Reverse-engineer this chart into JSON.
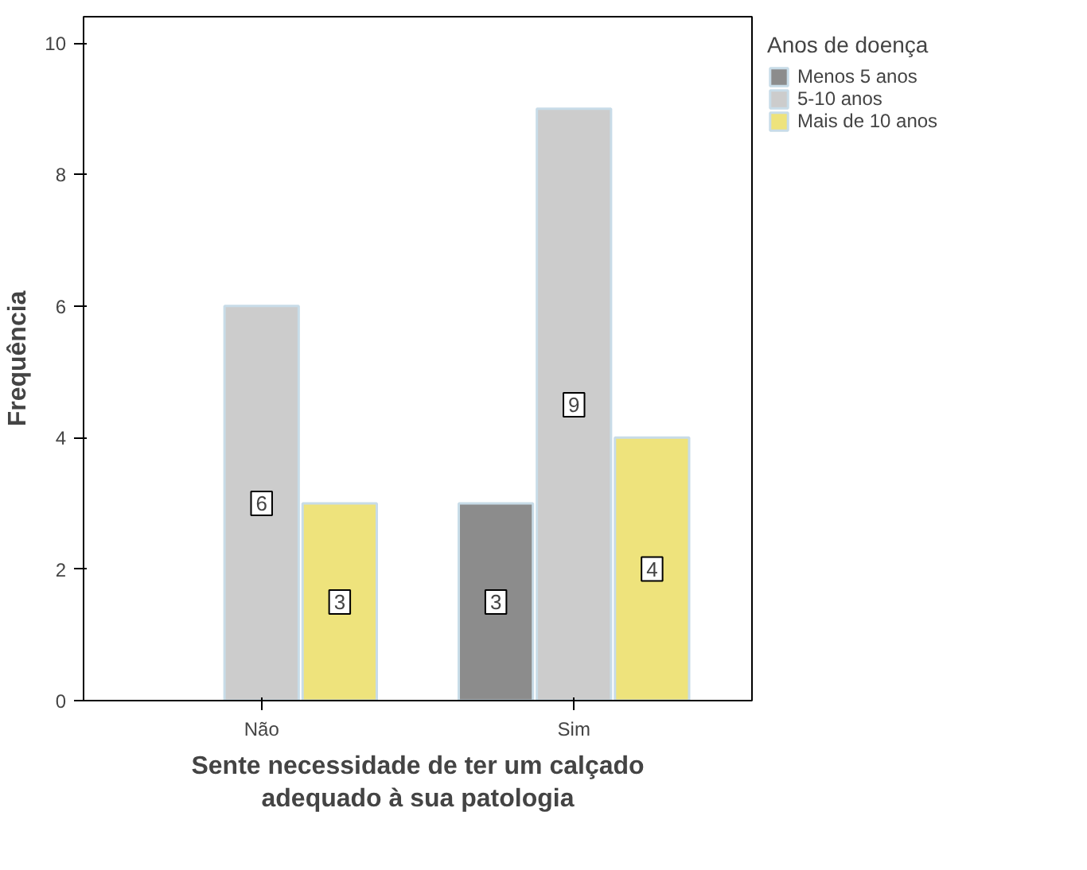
{
  "chart_data": {
    "type": "bar",
    "xlabel": "Sente necessidade de ter um calçado adequado à sua patologia",
    "ylabel": "Frequência",
    "legend_title": "Anos de doença",
    "categories": [
      "Não",
      "Sim"
    ],
    "series": [
      {
        "name": "Menos 5 anos",
        "color": "#8c8c8c",
        "values": [
          null,
          3
        ]
      },
      {
        "name": "5-10 anos",
        "color": "#cccccc",
        "values": [
          6,
          9
        ]
      },
      {
        "name": "Mais de 10 anos",
        "color": "#eee37c",
        "values": [
          3,
          4
        ]
      }
    ],
    "ylim": [
      0,
      10.4
    ],
    "yticks": [
      0,
      2,
      4,
      6,
      8,
      10
    ],
    "grid": false,
    "legend": "right",
    "data_labels": true
  }
}
